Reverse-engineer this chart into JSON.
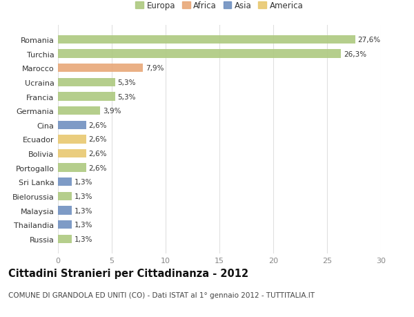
{
  "categories": [
    "Romania",
    "Turchia",
    "Marocco",
    "Ucraina",
    "Francia",
    "Germania",
    "Cina",
    "Ecuador",
    "Bolivia",
    "Portogallo",
    "Sri Lanka",
    "Bielorussia",
    "Malaysia",
    "Thailandia",
    "Russia"
  ],
  "values": [
    27.6,
    26.3,
    7.9,
    5.3,
    5.3,
    3.9,
    2.6,
    2.6,
    2.6,
    2.6,
    1.3,
    1.3,
    1.3,
    1.3,
    1.3
  ],
  "labels": [
    "27,6%",
    "26,3%",
    "7,9%",
    "5,3%",
    "5,3%",
    "3,9%",
    "2,6%",
    "2,6%",
    "2,6%",
    "2,6%",
    "1,3%",
    "1,3%",
    "1,3%",
    "1,3%",
    "1,3%"
  ],
  "continents": [
    "Europa",
    "Europa",
    "Africa",
    "Europa",
    "Europa",
    "Europa",
    "Asia",
    "America",
    "America",
    "Europa",
    "Asia",
    "Europa",
    "Asia",
    "Asia",
    "Europa"
  ],
  "continent_colors": {
    "Europa": "#adc980",
    "Africa": "#e8a878",
    "Asia": "#7090c0",
    "America": "#e8c870"
  },
  "legend_order": [
    "Europa",
    "Africa",
    "Asia",
    "America"
  ],
  "title": "Cittadini Stranieri per Cittadinanza - 2012",
  "subtitle": "COMUNE DI GRANDOLA ED UNITI (CO) - Dati ISTAT al 1° gennaio 2012 - TUTTITALIA.IT",
  "xlim": [
    0,
    30
  ],
  "xticks": [
    0,
    5,
    10,
    15,
    20,
    25,
    30
  ],
  "background_color": "#ffffff",
  "bar_height": 0.6,
  "grid_color": "#e0e0e0",
  "title_fontsize": 10.5,
  "subtitle_fontsize": 7.5,
  "label_fontsize": 7.5,
  "ytick_fontsize": 8,
  "xtick_fontsize": 8,
  "legend_fontsize": 8.5
}
